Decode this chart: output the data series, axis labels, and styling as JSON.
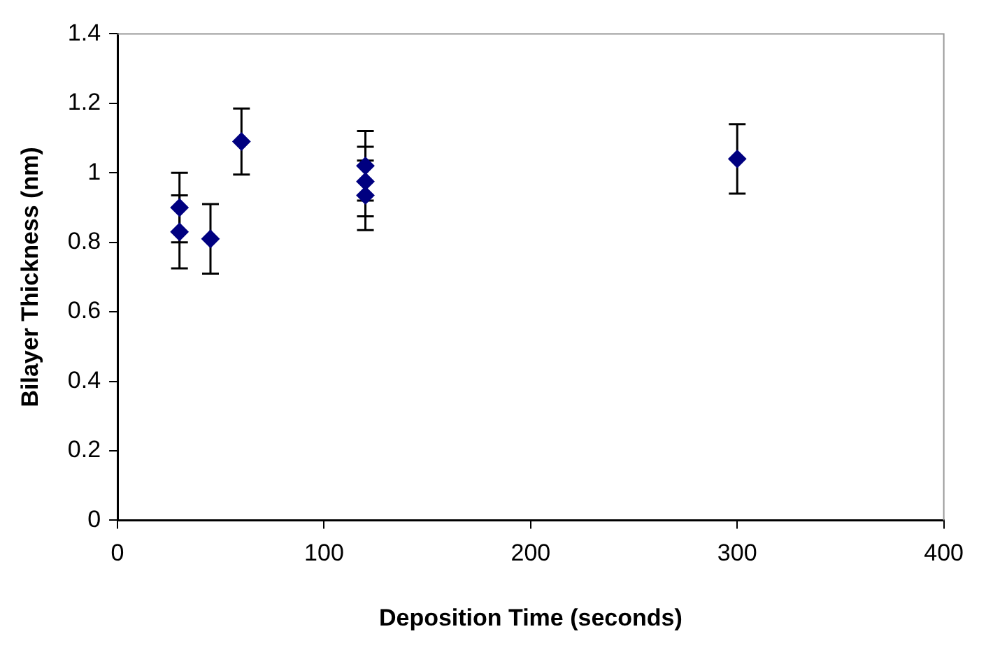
{
  "chart_data": {
    "type": "scatter",
    "xlabel": "Deposition Time (seconds)",
    "ylabel": "Bilayer Thickness (nm)",
    "x": [
      30,
      30,
      45,
      60,
      120,
      120,
      120,
      300
    ],
    "series": [
      {
        "color": "#000080",
        "values": [
          0.9,
          0.83,
          0.81,
          1.09,
          1.02,
          0.975,
          0.935,
          1.04
        ],
        "errors": [
          0.1,
          0.105,
          0.1,
          0.095,
          0.1,
          0.1,
          0.1,
          0.1
        ]
      }
    ],
    "xlim": [
      0,
      400
    ],
    "xticks": [
      0,
      100,
      200,
      300,
      400
    ],
    "ylim": [
      0,
      1.4
    ],
    "yticks": [
      0,
      0.2,
      0.4,
      0.6,
      0.8,
      1,
      1.2,
      1.4
    ],
    "grid": false,
    "legend": false,
    "marker": "diamond"
  }
}
